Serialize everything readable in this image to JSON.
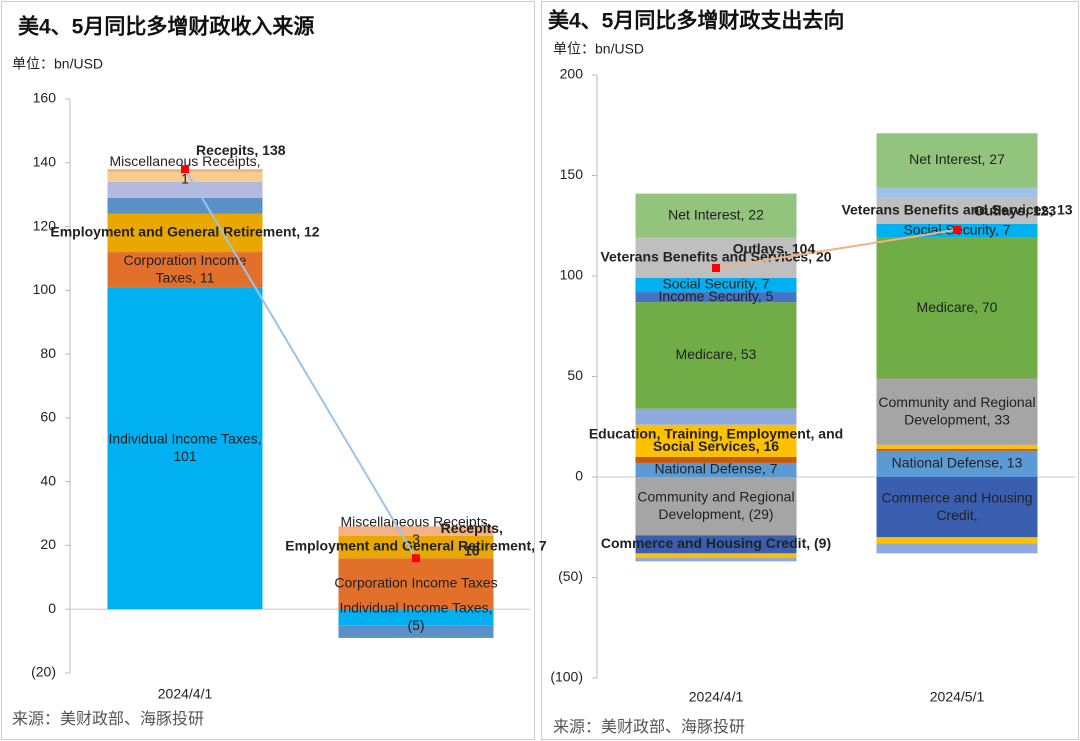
{
  "chart_data": [
    {
      "type": "stacked-bar",
      "title": "美4、5月同比多增财政收入来源",
      "unit": "单位：bn/USD",
      "source": "来源：美财政部、海豚投研",
      "categories": [
        "2024/4/1",
        null
      ],
      "ylim": [
        -20,
        160
      ],
      "yticks": [
        {
          "value": -20,
          "label": "(20)"
        },
        0,
        20,
        40,
        60,
        80,
        100,
        120,
        140,
        160
      ],
      "series": [
        {
          "name": "Individual Income Taxes",
          "color": "#00b0f0",
          "values": [
            101,
            -5
          ],
          "value_labels": [
            "Individual Income Taxes, 101",
            "Individual Income Taxes, (5)"
          ]
        },
        {
          "name": "Corporation Income Taxes",
          "color": "#e2702a",
          "values": [
            11,
            16
          ],
          "value_labels": [
            "Corporation Income Taxes, 11",
            "Corporation Income Taxes"
          ]
        },
        {
          "name": "Employment and General Retirement",
          "color": "#e8a800",
          "values": [
            12,
            7
          ],
          "value_labels": [
            "Employment and General Retirement, 12",
            "Employment and General Retirement, 7"
          ]
        },
        {
          "color": "#5b8fc7",
          "values": [
            5,
            -4
          ]
        },
        {
          "color": "#b4b9e0",
          "values": [
            5,
            null
          ]
        },
        {
          "color": "#f8cb8e",
          "values": [
            3,
            null
          ]
        },
        {
          "name": "Miscellaneous Receipts",
          "color": "#f4b183",
          "values": [
            1,
            3
          ],
          "value_labels": [
            "Miscellaneous Receipts, 1",
            "Miscellaneous Receipts, 3"
          ]
        }
      ],
      "totals": {
        "values": [
          138,
          16
        ],
        "value_labels": [
          "Recepits, 138",
          "Recepits, 16"
        ],
        "color": "#ff0000",
        "line_color": "#9dc3e6"
      }
    },
    {
      "type": "stacked-bar",
      "title": "美4、5月同比多增财政支出去向",
      "unit": "单位：bn/USD",
      "source": "来源：美财政部、海豚投研",
      "categories": [
        "2024/4/1",
        "2024/5/1"
      ],
      "ylim": [
        -100,
        200
      ],
      "yticks": [
        {
          "value": -100,
          "label": "(100)"
        },
        {
          "value": -50,
          "label": "(50)"
        },
        0,
        50,
        100,
        150,
        200
      ],
      "series": [
        {
          "name": "National Defense",
          "color": "#5b9bd5",
          "values": [
            7,
            13
          ],
          "value_labels": [
            "National Defense, 7",
            "National Defense, 13"
          ]
        },
        {
          "color": "#c55a11",
          "values": [
            3,
            1
          ]
        },
        {
          "name": "Education, Training, Employment, and Social Services",
          "color": "#ffc000",
          "values": [
            16,
            2
          ],
          "value_labels": [
            "Education, Training, Employment, and Social Services, 16",
            null
          ],
          "label_color": "#ff0000"
        },
        {
          "name": "Community and Regional Development",
          "color": "#a5a5a5",
          "values": [
            -29,
            33
          ],
          "value_labels": [
            "Community and Regional Development, (29)",
            "Community and Regional Development, 33"
          ]
        },
        {
          "color": "#8faadc",
          "values": [
            8,
            null
          ]
        },
        {
          "name": "Medicare",
          "color": "#70ad47",
          "values": [
            53,
            70
          ],
          "value_labels": [
            "Medicare, 53",
            "Medicare, 70"
          ]
        },
        {
          "name": "Income Security",
          "color": "#4472c4",
          "values": [
            5,
            null
          ],
          "value_labels": [
            "Income Security, 5",
            null
          ]
        },
        {
          "name": "Social Security",
          "color": "#00b0f0",
          "values": [
            7,
            7
          ],
          "value_labels": [
            "Social Security, 7",
            "Social Security, 7"
          ]
        },
        {
          "name": "Veterans Benefits and Services",
          "color": "#bfbfbf",
          "values": [
            20,
            13
          ],
          "value_labels": [
            "Veterans Benefits and Services, 20",
            "Veterans Benefits and Services, 13"
          ]
        },
        {
          "color": "#9dc3e6",
          "values": [
            null,
            5
          ]
        },
        {
          "name": "Net Interest",
          "color": "#92c47d",
          "values": [
            22,
            27
          ],
          "value_labels": [
            "Net Interest, 22",
            "Net Interest, 27"
          ]
        },
        {
          "name": "Commerce and Housing Credit",
          "color": "#3a5fb0",
          "values": [
            -9,
            -30
          ],
          "value_labels": [
            "Commerce and Housing Credit, (9)",
            "Commerce and Housing Credit,"
          ]
        },
        {
          "color": "#ffc000",
          "values": [
            -2,
            -3
          ]
        },
        {
          "color": "#8faadc",
          "values": [
            -2,
            -5
          ]
        }
      ],
      "totals": {
        "values": [
          104,
          123
        ],
        "value_labels": [
          "Outlays, 104",
          "Outlays, 123"
        ],
        "color": "#ff0000",
        "line_color": "#f4b183"
      }
    }
  ]
}
